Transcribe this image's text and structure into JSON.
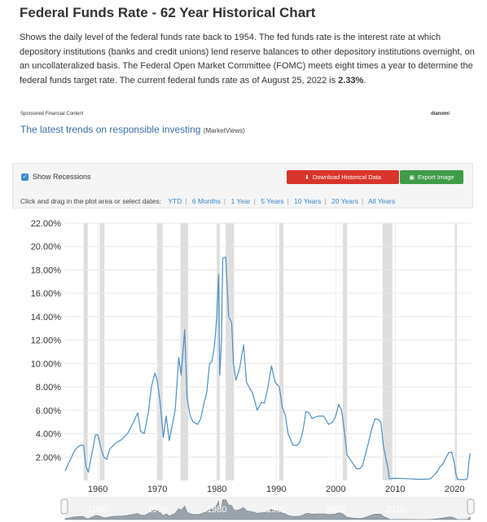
{
  "page": {
    "title": "Federal Funds Rate - 62 Year Historical Chart",
    "description_text": "Shows the daily level of the federal funds rate back to 1954. The fed funds rate is the interest rate at which depository institutions (banks and credit unions) lend reserve balances to other depository institutions overnight, on an uncollateralized basis. The Federal Open Market Committee (FOMC) meets eight times a year to determine the federal funds target rate. The current federal funds rate as of August 25, 2022 is ",
    "current_rate": "2.33%",
    "description_end": "."
  },
  "ad": {
    "sponsored_label": "Sponsored Financial Content",
    "brand": "dianomi",
    "link_text": "The latest trends on responsible investing",
    "source": "(MarketViews)"
  },
  "controls": {
    "recessions_label": "Show Recessions",
    "recessions_checked": true,
    "download_label": "Download Historical Data",
    "export_label": "Export Image",
    "dates_prompt": "Click and drag in the plot area or select dates:",
    "ranges": [
      "YTD",
      "6 Months",
      "1 Year",
      "5 Years",
      "10 Years",
      "20 Years",
      "All Years"
    ]
  },
  "colors": {
    "line": "#4a90c8",
    "recession": "#dedede",
    "download": "#d9342b",
    "export": "#3e9c48"
  },
  "chart_data": {
    "type": "line",
    "y_tick_labels": [
      "2.00%",
      "4.00%",
      "6.00%",
      "8.00%",
      "10.00%",
      "12.00%",
      "14.00%",
      "16.00%",
      "18.00%",
      "20.00%",
      "22.00%"
    ],
    "x_tick_labels": [
      "1960",
      "1970",
      "1980",
      "1990",
      "2000",
      "2010",
      "2020"
    ],
    "navigator_tick_labels": [
      "1960",
      "1970",
      "1980",
      "1990",
      "2000",
      "2010"
    ],
    "xlim": [
      1954.5,
      2022.7
    ],
    "ylim": [
      0,
      22
    ],
    "grid": true,
    "recessions": [
      [
        1957.6,
        1958.3
      ],
      [
        1960.3,
        1961.1
      ],
      [
        1969.9,
        1970.9
      ],
      [
        1973.9,
        1975.2
      ],
      [
        1980.0,
        1980.5
      ],
      [
        1981.5,
        1982.9
      ],
      [
        1990.5,
        1991.2
      ],
      [
        2001.2,
        2001.9
      ],
      [
        2007.9,
        2009.5
      ],
      [
        2020.1,
        2020.3
      ]
    ],
    "series": [
      {
        "x": [
          1954.5,
          1955.0,
          1955.5,
          1956.0,
          1956.5,
          1957.0,
          1957.6,
          1958.0,
          1958.4,
          1958.8,
          1959.2,
          1959.6,
          1960.0,
          1960.5,
          1961.0,
          1961.5,
          1962.0,
          1963.0,
          1964.0,
          1965.0,
          1966.0,
          1966.7,
          1967.2,
          1967.8,
          1968.5,
          1969.0,
          1969.6,
          1970.0,
          1970.5,
          1971.0,
          1971.5,
          1972.0,
          1972.5,
          1973.0,
          1973.6,
          1974.0,
          1974.6,
          1975.0,
          1975.5,
          1976.0,
          1976.8,
          1977.3,
          1977.8,
          1978.3,
          1978.8,
          1979.2,
          1979.6,
          1980.0,
          1980.3,
          1980.5,
          1980.8,
          1981.0,
          1981.5,
          1982.0,
          1982.5,
          1982.8,
          1983.2,
          1983.8,
          1984.5,
          1985.0,
          1985.5,
          1986.0,
          1986.8,
          1987.5,
          1988.0,
          1988.5,
          1989.2,
          1989.8,
          1990.5,
          1991.0,
          1991.5,
          1992.0,
          1992.8,
          1993.5,
          1994.0,
          1994.5,
          1995.0,
          1995.5,
          1996.0,
          1997.0,
          1998.0,
          1998.8,
          1999.5,
          2000.0,
          2000.5,
          2001.0,
          2001.5,
          2001.9,
          2002.5,
          2003.5,
          2004.0,
          2004.5,
          2005.0,
          2005.5,
          2006.0,
          2006.6,
          2007.0,
          2007.6,
          2008.0,
          2008.3,
          2008.8,
          2009.0,
          2010.0,
          2012.0,
          2014.0,
          2015.8,
          2016.5,
          2017.0,
          2017.5,
          2018.0,
          2018.5,
          2019.0,
          2019.5,
          2019.9,
          2020.2,
          2020.5,
          2021.0,
          2021.5,
          2022.0,
          2022.2,
          2022.4,
          2022.6
        ],
        "values": [
          0.8,
          1.4,
          1.9,
          2.5,
          2.8,
          3.0,
          3.0,
          1.2,
          0.7,
          1.8,
          2.8,
          3.9,
          3.9,
          2.8,
          2.0,
          1.8,
          2.7,
          3.2,
          3.5,
          4.0,
          5.0,
          5.8,
          4.2,
          4.0,
          5.8,
          8.0,
          9.2,
          8.5,
          6.6,
          3.7,
          5.5,
          3.4,
          4.7,
          6.0,
          10.5,
          9.0,
          12.9,
          7.1,
          5.6,
          5.0,
          4.8,
          5.3,
          6.5,
          7.5,
          10.0,
          10.2,
          11.5,
          14.0,
          17.6,
          9.0,
          12.0,
          19.0,
          19.1,
          14.0,
          13.5,
          10.0,
          8.6,
          9.5,
          11.6,
          8.4,
          7.9,
          7.5,
          6.0,
          6.7,
          6.6,
          7.7,
          9.8,
          8.4,
          8.0,
          6.3,
          5.6,
          4.0,
          3.0,
          3.0,
          3.3,
          4.3,
          5.9,
          5.8,
          5.3,
          5.5,
          5.5,
          4.8,
          5.0,
          5.5,
          6.5,
          6.0,
          4.0,
          2.2,
          1.75,
          1.0,
          1.0,
          1.25,
          2.3,
          3.2,
          4.3,
          5.25,
          5.25,
          5.0,
          3.0,
          2.2,
          1.0,
          0.15,
          0.18,
          0.15,
          0.1,
          0.13,
          0.4,
          0.7,
          1.15,
          1.4,
          1.9,
          2.4,
          2.4,
          1.6,
          0.6,
          0.08,
          0.08,
          0.08,
          0.08,
          0.33,
          1.6,
          2.33
        ]
      }
    ]
  }
}
